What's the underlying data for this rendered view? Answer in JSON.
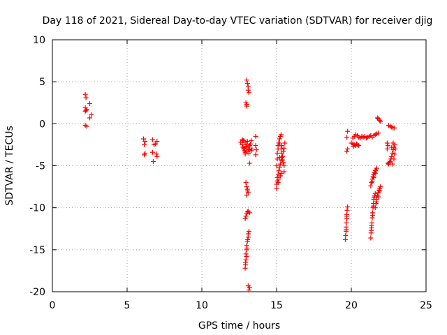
{
  "chart_data": {
    "type": "scatter",
    "title": "Day 118 of 2021, Sidereal Day-to-day VTEC variation (SDTVAR) for receiver djig",
    "xlabel": "GPS time / hours",
    "ylabel": "SDTVAR / TECUs",
    "xlim": [
      0,
      25
    ],
    "ylim": [
      -20,
      10
    ],
    "x_ticks": [
      0,
      5,
      10,
      15,
      20,
      25
    ],
    "y_ticks": [
      -20,
      -15,
      -10,
      -5,
      0,
      5,
      10
    ],
    "x_tick_labels": [
      "0",
      "5",
      "10",
      "15",
      "20",
      "25"
    ],
    "y_tick_labels": [
      "-20",
      "-15",
      "-10",
      "-5",
      "0",
      "5",
      "10"
    ],
    "grid": true,
    "marker": "+",
    "color": "#ff0000",
    "points": [
      [
        2.2,
        3.5
      ],
      [
        2.25,
        3.1
      ],
      [
        2.2,
        1.9
      ],
      [
        2.25,
        1.6
      ],
      [
        2.2,
        1.5
      ],
      [
        2.3,
        1.7
      ],
      [
        2.5,
        2.4
      ],
      [
        2.6,
        1.1
      ],
      [
        2.5,
        0.7
      ],
      [
        2.2,
        -0.2
      ],
      [
        2.3,
        -0.3
      ],
      [
        6.1,
        -1.8
      ],
      [
        6.2,
        -2.1
      ],
      [
        6.15,
        -2.5
      ],
      [
        6.2,
        -3.5
      ],
      [
        6.15,
        -3.7
      ],
      [
        6.7,
        -1.9
      ],
      [
        6.8,
        -2.5
      ],
      [
        6.7,
        -3.4
      ],
      [
        6.75,
        -4.5
      ],
      [
        6.9,
        -2.4
      ],
      [
        7.0,
        -2.1
      ],
      [
        6.95,
        -3.6
      ],
      [
        7.0,
        -3.9
      ],
      [
        12.6,
        -2.2
      ],
      [
        12.7,
        -2.5
      ],
      [
        12.75,
        -2.8
      ],
      [
        12.8,
        -3.0
      ],
      [
        12.85,
        -3.2
      ],
      [
        12.9,
        -3.4
      ],
      [
        12.7,
        -1.9
      ],
      [
        12.8,
        -2.0
      ],
      [
        12.9,
        -2.2
      ],
      [
        13.0,
        -2.5
      ],
      [
        13.1,
        -2.8
      ],
      [
        13.2,
        -3.1
      ],
      [
        13.3,
        -3.2
      ],
      [
        12.9,
        -3.6
      ],
      [
        13.0,
        -3.3
      ],
      [
        13.1,
        -3.0
      ],
      [
        13.2,
        -2.6
      ],
      [
        13.3,
        -2.0
      ],
      [
        12.85,
        -2.9
      ],
      [
        13.05,
        -2.1
      ],
      [
        13.15,
        -3.5
      ],
      [
        13.25,
        -2.4
      ],
      [
        12.75,
        -2.0
      ],
      [
        12.95,
        -2.7
      ],
      [
        13.35,
        -3.0
      ],
      [
        13.2,
        -4.7
      ],
      [
        13.6,
        -1.5
      ],
      [
        13.6,
        -2.6
      ],
      [
        13.65,
        -3.1
      ],
      [
        13.6,
        -3.7
      ],
      [
        13.0,
        5.2
      ],
      [
        13.05,
        4.8
      ],
      [
        13.1,
        4.4
      ],
      [
        13.1,
        4.0
      ],
      [
        13.15,
        3.7
      ],
      [
        12.95,
        2.5
      ],
      [
        13.0,
        2.3
      ],
      [
        13.0,
        2.1
      ],
      [
        12.95,
        -11.0
      ],
      [
        13.0,
        -10.7
      ],
      [
        13.05,
        -10.5
      ],
      [
        13.1,
        -10.4
      ],
      [
        13.2,
        -10.6
      ],
      [
        12.9,
        -11.3
      ],
      [
        12.95,
        -7.0
      ],
      [
        13.0,
        -7.5
      ],
      [
        13.05,
        -8.0
      ],
      [
        13.0,
        -8.5
      ],
      [
        13.1,
        -8.2
      ],
      [
        13.05,
        -7.8
      ],
      [
        12.9,
        -17.2
      ],
      [
        12.92,
        -16.8
      ],
      [
        12.95,
        -16.2
      ],
      [
        12.95,
        -15.5
      ],
      [
        13.0,
        -15.0
      ],
      [
        13.0,
        -14.5
      ],
      [
        13.05,
        -14.0
      ],
      [
        13.1,
        -13.5
      ],
      [
        13.1,
        -13.1
      ],
      [
        13.15,
        -12.8
      ],
      [
        12.92,
        -16.5
      ],
      [
        12.98,
        -15.8
      ],
      [
        13.02,
        -14.8
      ],
      [
        13.07,
        -13.8
      ],
      [
        13.1,
        -19.3
      ],
      [
        13.2,
        -19.5
      ],
      [
        13.15,
        -19.8
      ],
      [
        15.0,
        -7.7
      ],
      [
        15.0,
        -7.2
      ],
      [
        15.05,
        -6.8
      ],
      [
        15.05,
        -6.4
      ],
      [
        15.1,
        -6.0
      ],
      [
        15.15,
        -5.6
      ],
      [
        15.2,
        -5.2
      ],
      [
        15.25,
        -4.8
      ],
      [
        15.3,
        -4.4
      ],
      [
        15.35,
        -4.0
      ],
      [
        15.0,
        -5.0
      ],
      [
        15.05,
        -4.2
      ],
      [
        15.05,
        -3.5
      ],
      [
        15.1,
        -3.0
      ],
      [
        15.1,
        -2.6
      ],
      [
        15.15,
        -2.2
      ],
      [
        15.2,
        -1.8
      ],
      [
        15.25,
        -1.5
      ],
      [
        15.3,
        -1.3
      ],
      [
        15.3,
        -3.0
      ],
      [
        15.35,
        -2.6
      ],
      [
        15.35,
        -3.5
      ],
      [
        15.4,
        -3.9
      ],
      [
        15.45,
        -4.6
      ],
      [
        15.5,
        -5.0
      ],
      [
        15.5,
        -5.7
      ],
      [
        15.45,
        -3.3
      ],
      [
        15.5,
        -2.9
      ],
      [
        15.55,
        -2.3
      ],
      [
        15.4,
        -4.3
      ],
      [
        15.25,
        -6.2
      ],
      [
        15.3,
        -5.9
      ],
      [
        15.15,
        -6.6
      ],
      [
        15.1,
        -7.0
      ],
      [
        15.2,
        -4.0
      ],
      [
        15.2,
        -2.4
      ],
      [
        19.6,
        -13.8
      ],
      [
        19.62,
        -13.3
      ],
      [
        19.65,
        -12.8
      ],
      [
        19.65,
        -12.3
      ],
      [
        19.67,
        -11.8
      ],
      [
        19.7,
        -11.3
      ],
      [
        19.7,
        -10.8
      ],
      [
        19.72,
        -10.3
      ],
      [
        19.75,
        -9.9
      ],
      [
        19.66,
        -12.6
      ],
      [
        19.69,
        -11.0
      ],
      [
        19.7,
        -3.3
      ],
      [
        19.75,
        -3.0
      ],
      [
        19.7,
        -1.6
      ],
      [
        19.75,
        -0.9
      ],
      [
        20.1,
        -1.7
      ],
      [
        20.2,
        -1.5
      ],
      [
        20.3,
        -1.3
      ],
      [
        20.4,
        -1.4
      ],
      [
        20.5,
        -1.6
      ],
      [
        20.6,
        -1.7
      ],
      [
        20.7,
        -1.5
      ],
      [
        20.8,
        -1.6
      ],
      [
        20.9,
        -1.5
      ],
      [
        21.0,
        -1.7
      ],
      [
        21.1,
        -1.6
      ],
      [
        21.2,
        -1.5
      ],
      [
        21.3,
        -1.4
      ],
      [
        21.4,
        -1.6
      ],
      [
        21.5,
        -1.4
      ],
      [
        21.6,
        -1.3
      ],
      [
        21.7,
        -1.2
      ],
      [
        21.8,
        -1.1
      ],
      [
        20.0,
        -2.3
      ],
      [
        20.1,
        -2.4
      ],
      [
        20.2,
        -2.5
      ],
      [
        20.3,
        -2.6
      ],
      [
        20.4,
        -2.5
      ],
      [
        20.5,
        -2.6
      ],
      [
        20.15,
        -2.7
      ],
      [
        20.35,
        -2.4
      ],
      [
        21.75,
        0.7
      ],
      [
        21.8,
        0.6
      ],
      [
        21.9,
        0.4
      ],
      [
        21.95,
        0.3
      ],
      [
        22.5,
        -0.2
      ],
      [
        22.6,
        -0.3
      ],
      [
        22.7,
        -0.4
      ],
      [
        22.8,
        -0.5
      ],
      [
        22.9,
        -0.5
      ],
      [
        22.4,
        -2.3
      ],
      [
        22.45,
        -2.6
      ],
      [
        22.4,
        -3.0
      ],
      [
        22.45,
        -4.7
      ],
      [
        22.5,
        -4.8
      ],
      [
        22.55,
        -4.6
      ],
      [
        22.6,
        -4.5
      ],
      [
        22.65,
        -4.2
      ],
      [
        22.7,
        -3.9
      ],
      [
        22.75,
        -3.5
      ],
      [
        22.8,
        -3.1
      ],
      [
        22.85,
        -2.8
      ],
      [
        22.9,
        -2.5
      ],
      [
        22.75,
        -4.8
      ],
      [
        22.85,
        -4.2
      ],
      [
        22.9,
        -3.6
      ],
      [
        22.95,
        -3.0
      ],
      [
        22.8,
        -2.3
      ],
      [
        22.7,
        -2.8
      ],
      [
        21.3,
        -13.6
      ],
      [
        21.32,
        -13.0
      ],
      [
        21.35,
        -12.4
      ],
      [
        21.38,
        -11.8
      ],
      [
        21.4,
        -11.2
      ],
      [
        21.42,
        -10.6
      ],
      [
        21.45,
        -10.0
      ],
      [
        21.48,
        -9.5
      ],
      [
        21.5,
        -9.0
      ],
      [
        21.55,
        -8.6
      ],
      [
        21.6,
        -8.3
      ],
      [
        21.33,
        -12.7
      ],
      [
        21.37,
        -12.1
      ],
      [
        21.43,
        -10.9
      ],
      [
        21.47,
        -9.8
      ],
      [
        21.52,
        -8.8
      ],
      [
        21.6,
        -10.0
      ],
      [
        21.65,
        -9.5
      ],
      [
        21.7,
        -9.0
      ],
      [
        21.75,
        -8.5
      ],
      [
        21.8,
        -8.2
      ],
      [
        21.85,
        -7.9
      ],
      [
        21.9,
        -7.7
      ],
      [
        21.95,
        -7.5
      ],
      [
        21.7,
        -9.3
      ],
      [
        21.8,
        -8.7
      ],
      [
        21.9,
        -8.0
      ],
      [
        21.3,
        -7.4
      ],
      [
        21.35,
        -7.0
      ],
      [
        21.4,
        -6.6
      ],
      [
        21.45,
        -6.3
      ],
      [
        21.5,
        -6.0
      ],
      [
        21.55,
        -5.8
      ],
      [
        21.6,
        -5.6
      ],
      [
        21.65,
        -5.5
      ],
      [
        21.7,
        -5.3
      ],
      [
        21.4,
        -6.9
      ],
      [
        21.5,
        -6.4
      ],
      [
        21.6,
        -5.9
      ]
    ]
  }
}
